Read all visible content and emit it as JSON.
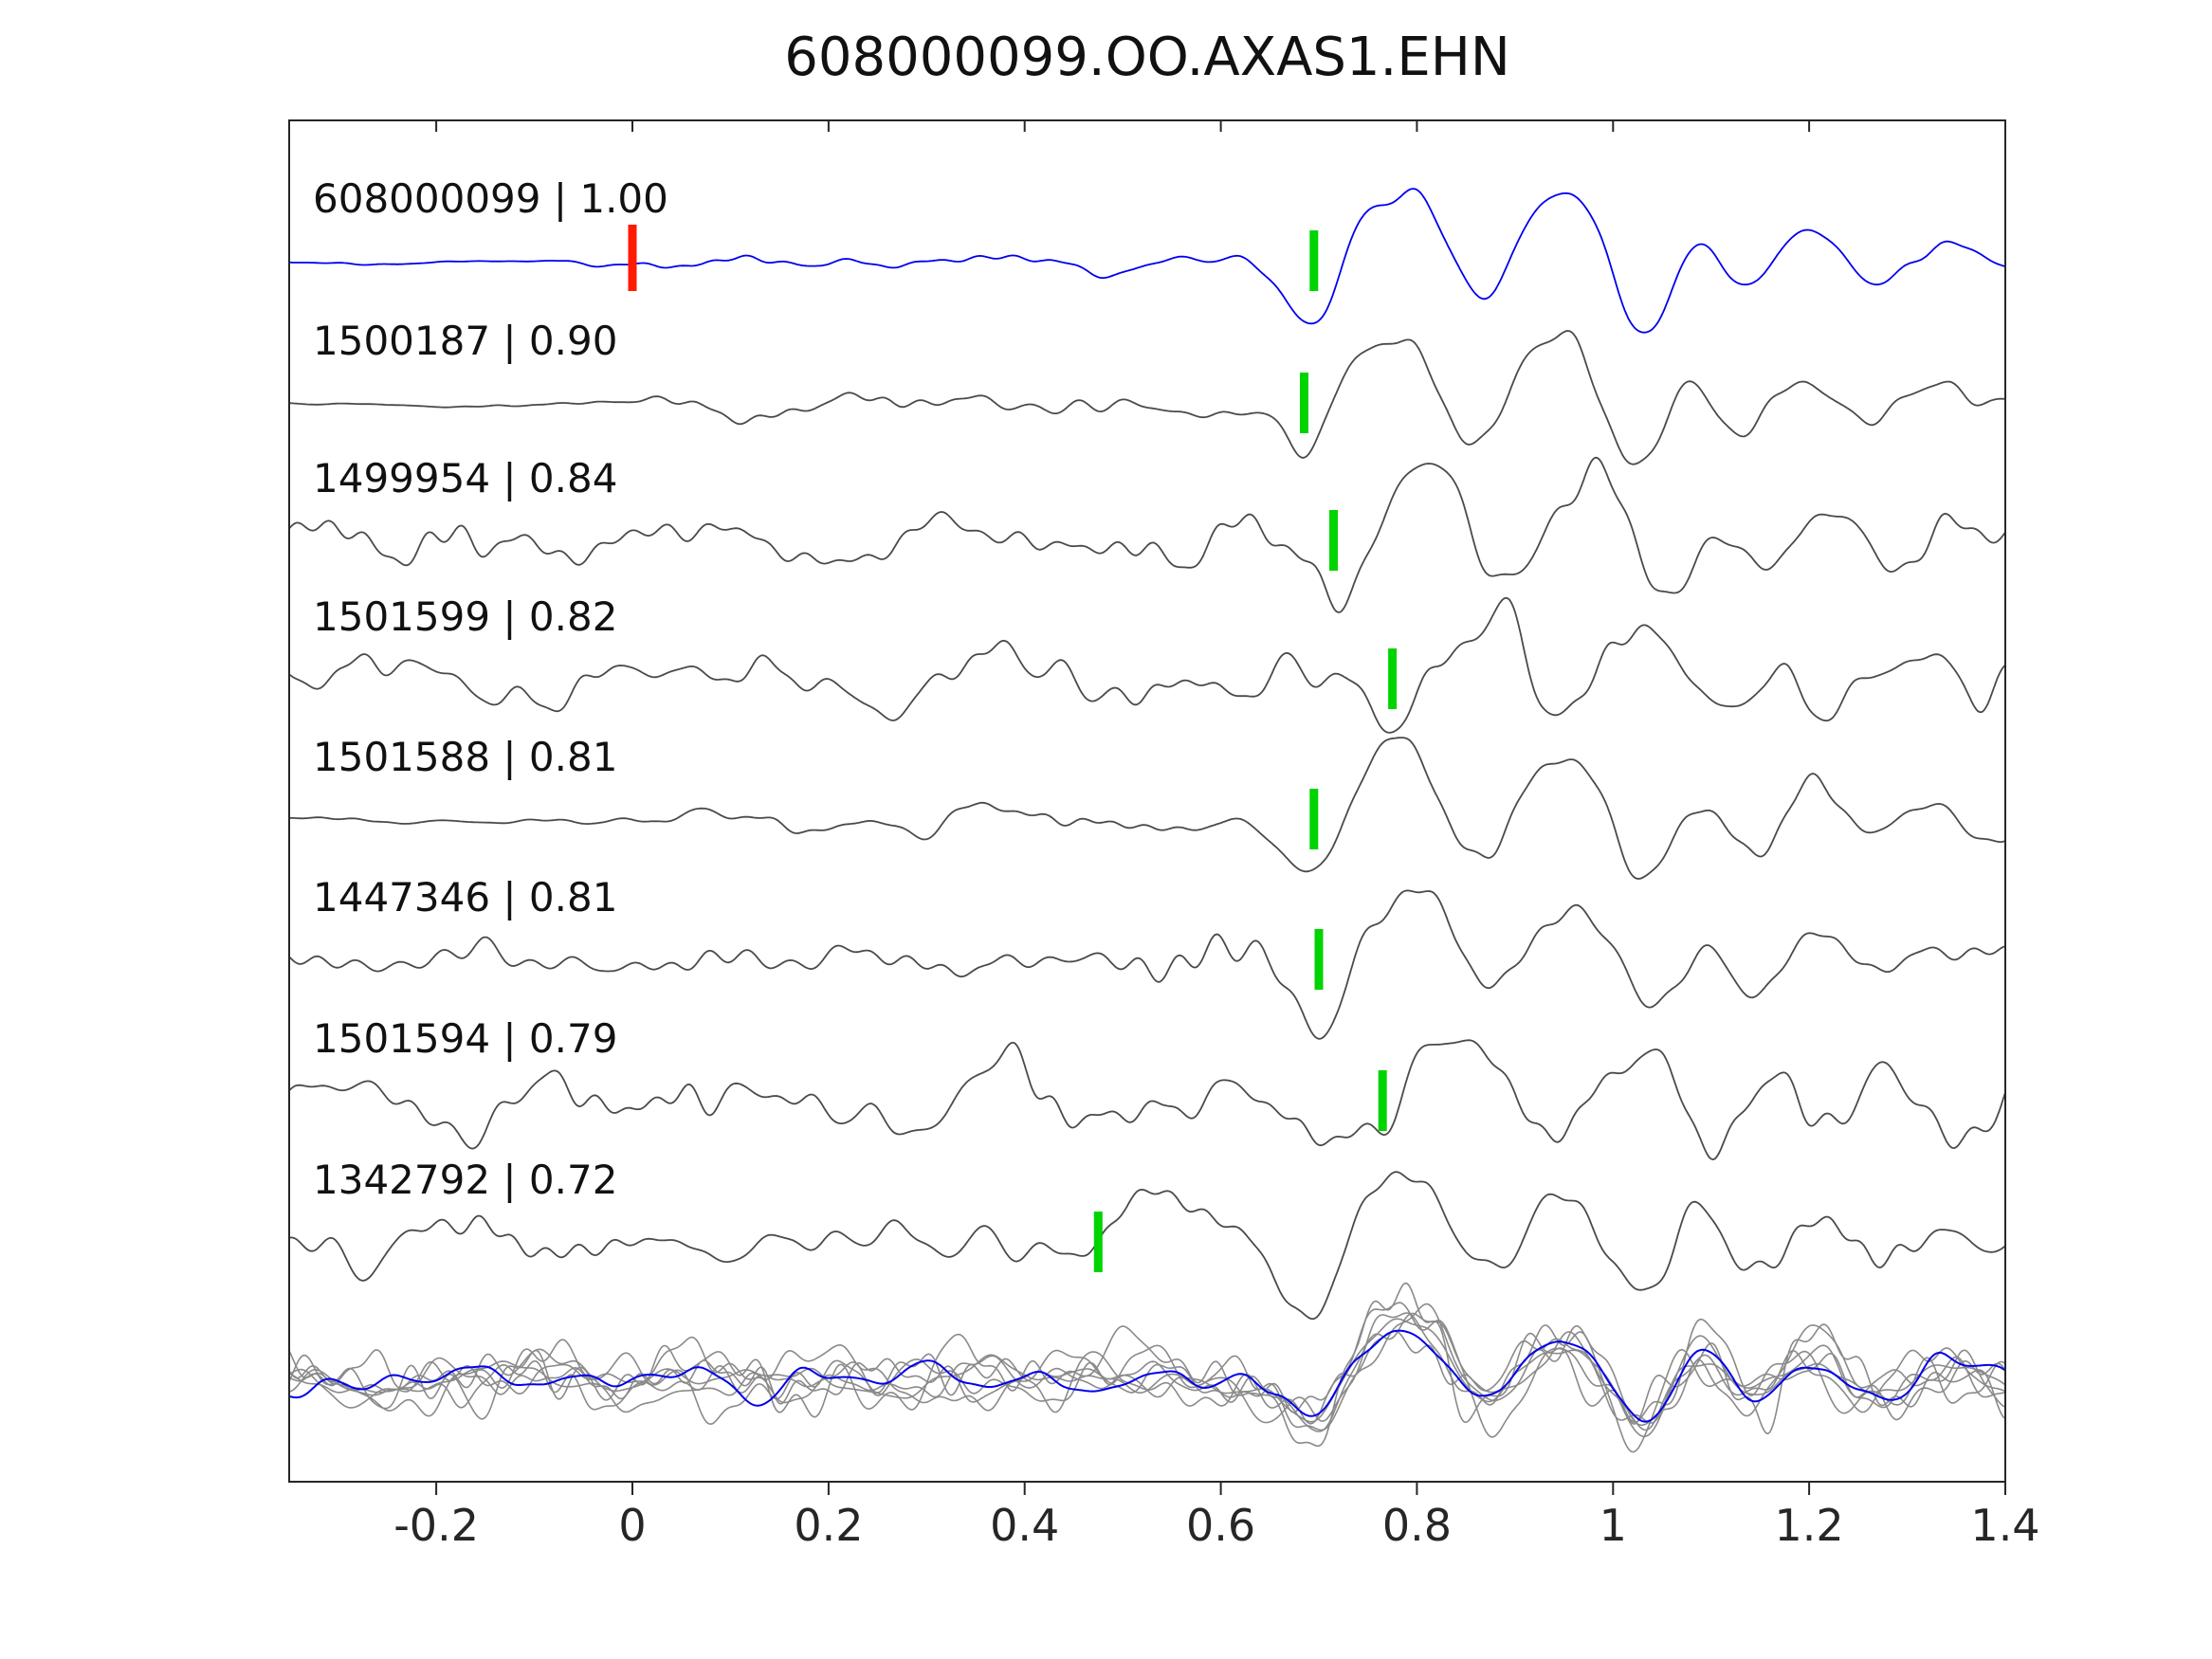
{
  "chart_data": {
    "type": "line",
    "title": "608000099.OO.AXAS1.EHN",
    "xlabel": "",
    "ylabel": "",
    "xlim": [
      -0.35,
      1.4
    ],
    "xticks": [
      -0.2,
      0,
      0.2,
      0.4,
      0.6,
      0.8,
      1,
      1.2,
      1.4
    ],
    "xtick_labels": [
      "-0.2",
      "0",
      "0.2",
      "0.4",
      "0.6",
      "0.8",
      "1",
      "1.2",
      "1.4"
    ],
    "grid": false,
    "legend": null,
    "colors": {
      "reference": "#0000ee",
      "template": "#4a4a4a",
      "overlay_gray": "#8a8a8a",
      "pick_marker": "#00d400",
      "reference_marker": "#ff1a00",
      "axis": "#262626"
    },
    "reference_marker": {
      "trace_index": 0,
      "x": 0.0
    },
    "label_separator": " | ",
    "traces": [
      {
        "id": "608000099",
        "correlation": "1.00",
        "pick_x": 0.695,
        "is_reference": true,
        "noise_amp": 6,
        "event_amp": 80,
        "shift": 0.0,
        "onset": 0.02,
        "seed": 11
      },
      {
        "id": "1500187",
        "correlation": "0.90",
        "pick_x": 0.685,
        "is_reference": false,
        "noise_amp": 8,
        "event_amp": 78,
        "shift": -0.01,
        "onset": 0.05,
        "seed": 23
      },
      {
        "id": "1499954",
        "correlation": "0.84",
        "pick_x": 0.715,
        "is_reference": false,
        "noise_amp": 13,
        "event_amp": 72,
        "shift": 0.02,
        "onset": -9,
        "seed": 37
      },
      {
        "id": "1501599",
        "correlation": "0.82",
        "pick_x": 0.775,
        "is_reference": false,
        "noise_amp": 18,
        "event_amp": 68,
        "shift": 0.08,
        "onset": -9,
        "seed": 51
      },
      {
        "id": "1501588",
        "correlation": "0.81",
        "pick_x": 0.695,
        "is_reference": false,
        "noise_amp": 9,
        "event_amp": 75,
        "shift": 0.0,
        "onset": 0.02,
        "seed": 67
      },
      {
        "id": "1447346",
        "correlation": "0.81",
        "pick_x": 0.7,
        "is_reference": false,
        "noise_amp": 13,
        "event_amp": 70,
        "shift": 0.005,
        "onset": -9,
        "seed": 83
      },
      {
        "id": "1501594",
        "correlation": "0.79",
        "pick_x": 0.765,
        "is_reference": false,
        "noise_amp": 20,
        "event_amp": 66,
        "shift": 0.07,
        "onset": -9,
        "seed": 97
      },
      {
        "id": "1342792",
        "correlation": "0.72",
        "pick_x": 0.475,
        "is_reference": false,
        "noise_amp": 19,
        "event_amp": 60,
        "shift": 0.0,
        "onset": -9,
        "seed": 113,
        "extra_bump": [
          0.52,
          0.9,
          0.03
        ]
      }
    ],
    "event_wavelet": [
      [
        0.665,
        -0.25,
        0.022
      ],
      [
        0.7,
        -0.75,
        0.022
      ],
      [
        0.745,
        0.45,
        0.022
      ],
      [
        0.8,
        1.0,
        0.03
      ],
      [
        0.862,
        -0.55,
        0.026
      ],
      [
        0.915,
        0.35,
        0.022
      ],
      [
        0.965,
        0.85,
        0.03
      ],
      [
        1.03,
        -1.0,
        0.03
      ],
      [
        1.085,
        0.55,
        0.025
      ],
      [
        1.14,
        -0.45,
        0.025
      ],
      [
        1.2,
        0.4,
        0.025
      ],
      [
        1.27,
        -0.25,
        0.025
      ],
      [
        1.33,
        0.25,
        0.03
      ]
    ],
    "overlay": {
      "description": "all aligned template traces overlaid in gray with the blue reference on top",
      "gray_count": 7,
      "event_amp": 55
    }
  }
}
